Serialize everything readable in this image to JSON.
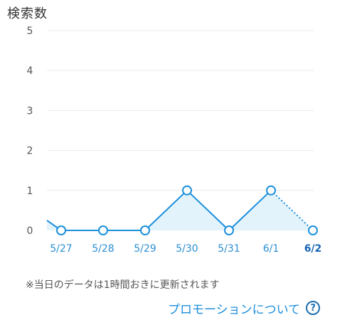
{
  "title": "検索数",
  "chart_data": {
    "type": "line",
    "x": [
      "5/27",
      "5/28",
      "5/29",
      "5/30",
      "5/31",
      "6/1",
      "6/2"
    ],
    "series": [
      {
        "values": [
          0,
          0,
          0,
          1,
          0,
          1,
          0
        ]
      }
    ],
    "ylim": [
      0,
      5
    ],
    "yticks": [
      "0",
      "1",
      "2",
      "3",
      "4",
      "5"
    ],
    "grid": true,
    "current_day": "6/2",
    "current_day_segment": "dotted",
    "colors": {
      "line": "#1c8fdc",
      "fill": "#e3f3fb",
      "point_fill": "#ffffff",
      "grid": "#ececec",
      "ytick": "#555555",
      "xtick": "#2b8fd0",
      "xtick_current": "#1565b5"
    }
  },
  "note": "※当日のデータは1時間おきに更新されます",
  "promo": {
    "label": "プロモーションについて",
    "icon": "help-circle-icon",
    "icon_glyph": "?"
  }
}
